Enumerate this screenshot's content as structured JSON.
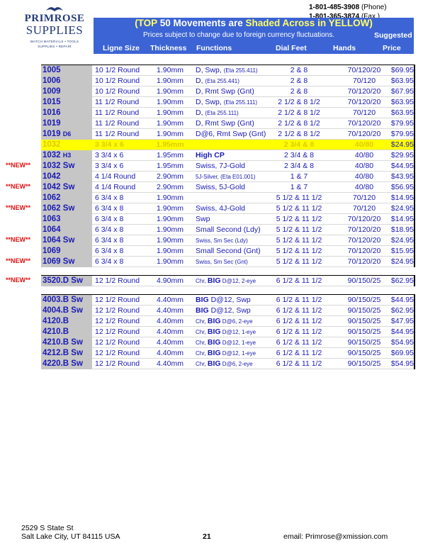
{
  "contact": {
    "phone": "1-801-485-3908",
    "phone_label": "(Phone)",
    "fax": "1-801-365-3874",
    "fax_label": "(Fax     )"
  },
  "logo": {
    "line1": "PRIMROSE",
    "line2": "SUPPLIES",
    "tag1": "WATCH MATERIALS • TOOLS",
    "tag2": "SUPPLIES • REPAIR"
  },
  "banner": {
    "title_a": "(TOP ",
    "title_b": "50",
    "title_c": " Movements are ",
    "title_d": "Shaded Across in YELLOW)",
    "subtitle": "Prices subject to change due to foreign currency fluctuations.",
    "suggested": "Suggested",
    "col_ligne": "Ligne Size",
    "col_thickness": "Thickness",
    "col_functions": "Functions",
    "col_dial": "Dial Feet",
    "col_hands": "Hands",
    "col_price": "Price"
  },
  "colors": {
    "banner": "#3c64d4",
    "highlight": "#ffff00",
    "text": "#1a1ab4",
    "new": "#dd1111"
  },
  "groups": [
    [
      {
        "model": "1005",
        "suffix": "",
        "ligne": "10 1/2 Round",
        "thickness": "1.90mm",
        "func": "D, Swp,",
        "func_small": "(Eta 255.411)",
        "dial": "2 & 8",
        "hands": "70/120/20",
        "price": "$69.95",
        "yellow": false,
        "new": ""
      },
      {
        "model": "1006",
        "suffix": "",
        "ligne": "10 1/2 Round",
        "thickness": "1.90mm",
        "func": "D,",
        "func_small": "(Eta 255.441)",
        "dial": "2 & 8",
        "hands": "70/120",
        "price": "$63.95",
        "yellow": false,
        "new": ""
      },
      {
        "model": "1009",
        "suffix": "",
        "ligne": "10 1/2 Round",
        "thickness": "1.90mm",
        "func": "D, Rmt Swp (Gnt)",
        "func_small": "",
        "dial": "2 & 8",
        "hands": "70/120/20",
        "price": "$67.95",
        "yellow": false,
        "new": ""
      },
      {
        "model": "1015",
        "suffix": "",
        "ligne": "11 1/2 Round",
        "thickness": "1.90mm",
        "func": "D, Swp,",
        "func_small": "(Eta 255.111)",
        "dial": "2 1/2 & 8 1/2",
        "hands": "70/120/20",
        "price": "$63.95",
        "yellow": false,
        "new": ""
      },
      {
        "model": "1016",
        "suffix": "",
        "ligne": "11 1/2 Round",
        "thickness": "1.90mm",
        "func": "D,",
        "func_small": "(Eta 255.111)",
        "dial": "2 1/2 & 8 1/2",
        "hands": "70/120",
        "price": "$63.95",
        "yellow": false,
        "new": ""
      },
      {
        "model": "1019",
        "suffix": "",
        "ligne": "11 1/2 Round",
        "thickness": "1.90mm",
        "func": "D, Rmt Swp (Gnt)",
        "func_small": "",
        "dial": "2 1/2 & 8 1/2",
        "hands": "70/120/20",
        "price": "$79.95",
        "yellow": false,
        "new": ""
      },
      {
        "model": "1019",
        "suffix": "D6",
        "ligne": "11 1/2 Round",
        "thickness": "1.90mm",
        "func": "D@6, Rmt Swp (Gnt)",
        "func_small": "",
        "dial": "2 1/2 & 8 1/2",
        "hands": "70/120/20",
        "price": "$79.95",
        "yellow": false,
        "new": ""
      },
      {
        "model": "1032",
        "suffix": "",
        "ligne": "3 3/4 x 6",
        "thickness": "1.95mm",
        "func": "",
        "func_small": "",
        "dial": "2 3/4 & 8",
        "hands": "40/80",
        "price": "$24.95",
        "yellow": true,
        "new": ""
      },
      {
        "model": "1032",
        "suffix": "H3",
        "ligne": "3 3/4 x 6",
        "thickness": "1.95mm",
        "func": "High CP",
        "func_small": "",
        "dial": "2 3/4 & 8",
        "hands": "40/80",
        "price": "$29.95",
        "yellow": false,
        "new": "",
        "bold_func": true
      },
      {
        "model": "1032 Sw",
        "suffix": "",
        "ligne": "3 3/4 x 6",
        "thickness": "1.95mm",
        "func": "Swiss, 7J-Gold",
        "func_small": "",
        "dial": "2 3/4 & 8",
        "hands": "40/80",
        "price": "$44.95",
        "yellow": false,
        "new": "**NEW**"
      },
      {
        "model": "1042",
        "suffix": "",
        "ligne": "4 1/4 Round",
        "thickness": "2.90mm",
        "func": "",
        "func_small": "5J-Silver, (Eta E01.001)",
        "dial": "1 & 7",
        "hands": "40/80",
        "price": "$43.95",
        "yellow": false,
        "new": ""
      },
      {
        "model": "1042 Sw",
        "suffix": "",
        "ligne": "4 1/4 Round",
        "thickness": "2.90mm",
        "func": "Swiss, 5J-Gold",
        "func_small": "",
        "dial": "1 & 7",
        "hands": "40/80",
        "price": "$56.95",
        "yellow": false,
        "new": "**NEW**"
      },
      {
        "model": "1062",
        "suffix": "",
        "ligne": "6 3/4 x 8",
        "thickness": "1.90mm",
        "func": "",
        "func_small": "",
        "dial": "5 1/2 & 11 1/2",
        "hands": "70/120",
        "price": "$14.95",
        "yellow": false,
        "new": ""
      },
      {
        "model": "1062 Sw",
        "suffix": "",
        "ligne": "6 3/4 x 8",
        "thickness": "1.90mm",
        "func": "Swiss, 4J-Gold",
        "func_small": "",
        "dial": "5 1/2 & 11 1/2",
        "hands": "70/120",
        "price": "$24.95",
        "yellow": false,
        "new": "**NEW**"
      },
      {
        "model": "1063",
        "suffix": "",
        "ligne": "6 3/4 x 8",
        "thickness": "1.90mm",
        "func": "Swp",
        "func_small": "",
        "dial": "5 1/2 & 11 1/2",
        "hands": "70/120/20",
        "price": "$14.95",
        "yellow": false,
        "new": ""
      },
      {
        "model": "1064",
        "suffix": "",
        "ligne": "6 3/4 x 8",
        "thickness": "1.90mm",
        "func": "Small Second (Ldy)",
        "func_small": "",
        "dial": "5 1/2 & 11 1/2",
        "hands": "70/120/20",
        "price": "$18.95",
        "yellow": false,
        "new": ""
      },
      {
        "model": "1064 Sw",
        "suffix": "",
        "ligne": "6 3/4 x 8",
        "thickness": "1.90mm",
        "func": "",
        "func_small": "Swiss, Sm Sec (Ldy)",
        "dial": "5 1/2 & 11 1/2",
        "hands": "70/120/20",
        "price": "$24.95",
        "yellow": false,
        "new": "**NEW**"
      },
      {
        "model": "1069",
        "suffix": "",
        "ligne": "6 3/4 x 8",
        "thickness": "1.90mm",
        "func": "Small Second (Gnt)",
        "func_small": "",
        "dial": "5 1/2 & 11 1/2",
        "hands": "70/120/20",
        "price": "$15.95",
        "yellow": false,
        "new": ""
      },
      {
        "model": "1069 Sw",
        "suffix": "",
        "ligne": "6 3/4 x 8",
        "thickness": "1.90mm",
        "func": "",
        "func_small": "Swiss, Sm Sec (Gnt)",
        "dial": "5 1/2 & 11 1/2",
        "hands": "70/120/20",
        "price": "$24.95",
        "yellow": false,
        "new": "**NEW**"
      }
    ],
    [
      {
        "model": "3520.D Sw",
        "suffix": "",
        "ligne": "12 1/2 Round",
        "thickness": "4.90mm",
        "func_pre": "Chr, ",
        "func_big": "BIG",
        "func_post": " D@12, 2-eye",
        "post_small": true,
        "dial": "6 1/2 & 11 1/2",
        "hands": "90/150/25",
        "price": "$62.95",
        "yellow": false,
        "new": "**NEW**"
      }
    ],
    [
      {
        "model": "4003.B Sw",
        "suffix": "",
        "ligne": "12 1/2 Round",
        "thickness": "4.40mm",
        "func_pre": "",
        "func_big": "BIG",
        "func_post": " D@12, Swp",
        "post_small": false,
        "dial": "6 1/2 & 11 1/2",
        "hands": "90/150/25",
        "price": "$44.95",
        "yellow": false,
        "new": ""
      },
      {
        "model": "4004.B Sw",
        "suffix": "",
        "ligne": "12 1/2 Round",
        "thickness": "4.40mm",
        "func_pre": "",
        "func_big": "BIG",
        "func_post": " D@12, Swp",
        "post_small": false,
        "dial": "6 1/2 & 11 1/2",
        "hands": "90/150/25",
        "price": "$62.95",
        "yellow": false,
        "new": ""
      },
      {
        "model": "4120.B",
        "suffix": "",
        "ligne": "12 1/2 Round",
        "thickness": "4.40mm",
        "func_pre": "Chr, ",
        "func_big": "BIG",
        "func_post": " D@6, 2-eye",
        "post_small": true,
        "dial": "6 1/2 & 11 1/2",
        "hands": "90/150/25",
        "price": "$47.95",
        "yellow": false,
        "new": ""
      },
      {
        "model": "4210.B",
        "suffix": "",
        "ligne": "12 1/2 Round",
        "thickness": "4.40mm",
        "func_pre": "Chr, ",
        "func_big": "BIG",
        "func_post": " D@12, 1-eye",
        "post_small": true,
        "dial": "6 1/2 & 11 1/2",
        "hands": "90/150/25",
        "price": "$44.95",
        "yellow": false,
        "new": ""
      },
      {
        "model": "4210.B Sw",
        "suffix": "",
        "ligne": "12 1/2 Round",
        "thickness": "4.40mm",
        "func_pre": "Chr, ",
        "func_big": "BIG",
        "func_post": " D@12, 1-eye",
        "post_small": true,
        "dial": "6 1/2 & 11 1/2",
        "hands": "90/150/25",
        "price": "$54.95",
        "yellow": false,
        "new": ""
      },
      {
        "model": "4212.B Sw",
        "suffix": "",
        "ligne": "12 1/2 Round",
        "thickness": "4.40mm",
        "func_pre": "Chr, ",
        "func_big": "BIG",
        "func_post": " D@12, 1-eye",
        "post_small": true,
        "dial": "6 1/2 & 11 1/2",
        "hands": "90/150/25",
        "price": "$69.95",
        "yellow": false,
        "new": ""
      },
      {
        "model": "4220.B Sw",
        "suffix": "",
        "ligne": "12 1/2 Round",
        "thickness": "4.40mm",
        "func_pre": "Chr, ",
        "func_big": "BIG",
        "func_post": " D@6, 2-eye",
        "post_small": true,
        "dial": "6 1/2 & 11 1/2",
        "hands": "90/150/25",
        "price": "$54.95",
        "yellow": false,
        "new": ""
      }
    ]
  ],
  "footer": {
    "address1": "2529 S State St",
    "address2": "Salt Lake City, UT  84115 USA",
    "page": "21",
    "email": "email: Primrose@xmission.com"
  }
}
